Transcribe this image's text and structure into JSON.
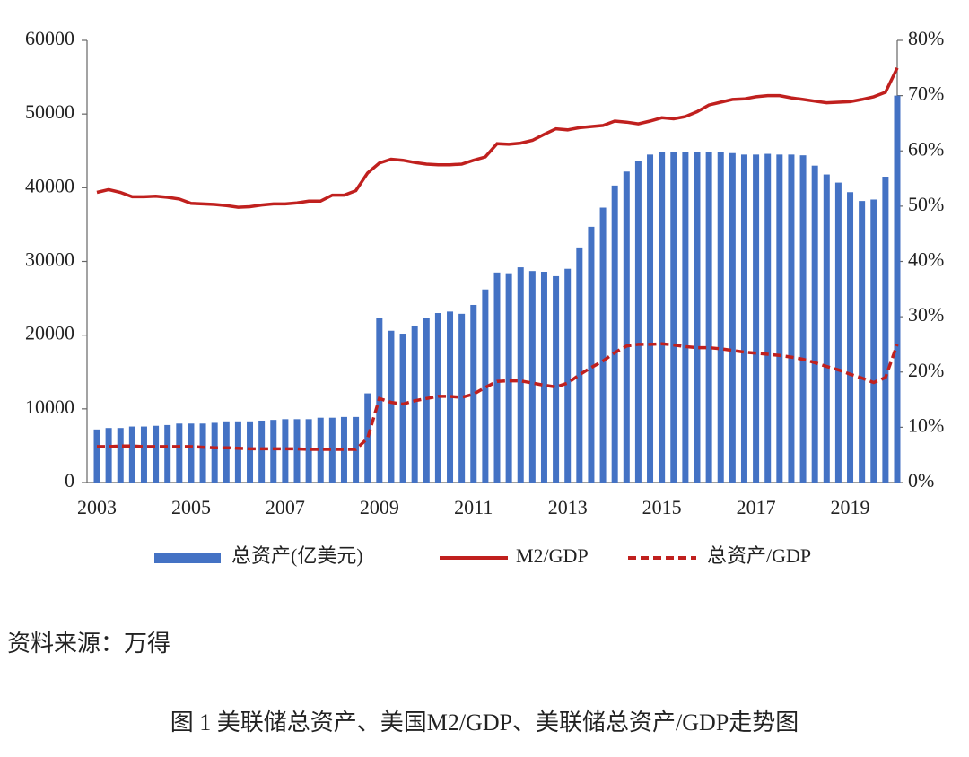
{
  "chart_data": {
    "type": "combo",
    "categories": [
      "2003",
      null,
      null,
      null,
      null,
      null,
      null,
      null,
      "2005",
      null,
      null,
      null,
      null,
      null,
      null,
      null,
      "2007",
      null,
      null,
      null,
      null,
      null,
      null,
      null,
      "2009",
      null,
      null,
      null,
      null,
      null,
      null,
      null,
      "2011",
      null,
      null,
      null,
      null,
      null,
      null,
      null,
      "2013",
      null,
      null,
      null,
      null,
      null,
      null,
      null,
      "2015",
      null,
      null,
      null,
      null,
      null,
      null,
      null,
      "2017",
      null,
      null,
      null,
      null,
      null,
      null,
      null,
      "2019",
      null,
      null,
      null,
      null
    ],
    "series": [
      {
        "name": "总资产(亿美元)",
        "kind": "bar",
        "axis": "y",
        "color": "#4472c4",
        "values": [
          7200,
          7400,
          7400,
          7600,
          7600,
          7700,
          7800,
          8000,
          8000,
          8000,
          8100,
          8300,
          8300,
          8300,
          8400,
          8500,
          8600,
          8600,
          8600,
          8800,
          8800,
          8900,
          8900,
          12100,
          22300,
          20600,
          20200,
          21300,
          22300,
          23000,
          23200,
          22900,
          24100,
          26200,
          28500,
          28400,
          29200,
          28700,
          28600,
          28000,
          29000,
          31900,
          34700,
          37300,
          40300,
          42200,
          43600,
          44500,
          44800,
          44800,
          44900,
          44800,
          44800,
          44800,
          44700,
          44500,
          44500,
          44600,
          44500,
          44500,
          44400,
          43000,
          41800,
          40700,
          39400,
          38200,
          38400,
          41500,
          52500
        ]
      },
      {
        "name": "M2/GDP",
        "kind": "line",
        "line_style": "solid",
        "axis": "y2",
        "color": "#c0201e",
        "values": [
          52.5,
          53,
          52.5,
          51.7,
          51.7,
          51.8,
          51.6,
          51.3,
          50.5,
          50.4,
          50.3,
          50.1,
          49.8,
          49.9,
          50.2,
          50.4,
          50.4,
          50.6,
          50.9,
          50.9,
          52,
          52,
          52.8,
          56,
          57.8,
          58.5,
          58.3,
          57.9,
          57.6,
          57.5,
          57.5,
          57.6,
          58.3,
          58.9,
          61.3,
          61.2,
          61.4,
          61.9,
          63,
          64,
          63.8,
          64.2,
          64.4,
          64.6,
          65.4,
          65.2,
          64.9,
          65.4,
          66,
          65.8,
          66.2,
          67.1,
          68.3,
          68.8,
          69.3,
          69.4,
          69.8,
          70,
          70,
          69.6,
          69.3,
          69,
          68.7,
          68.8,
          68.9,
          69.3,
          69.8,
          70.6,
          75
        ]
      },
      {
        "name": "总资产/GDP",
        "kind": "line",
        "line_style": "dashed",
        "axis": "y2",
        "color": "#c0201e",
        "values": [
          6.5,
          6.5,
          6.6,
          6.6,
          6.5,
          6.5,
          6.5,
          6.5,
          6.5,
          6.4,
          6.3,
          6.3,
          6.2,
          6.1,
          6.1,
          6.1,
          6.1,
          6.1,
          6,
          6,
          6,
          6,
          6,
          8,
          15.2,
          14.5,
          14.2,
          14.8,
          15.2,
          15.6,
          15.6,
          15.4,
          16,
          17.2,
          18.3,
          18.4,
          18.4,
          18,
          17.6,
          17.3,
          18,
          19.5,
          20.8,
          22,
          23.5,
          24.7,
          25,
          25,
          25.1,
          24.9,
          24.6,
          24.4,
          24.4,
          24.2,
          23.9,
          23.6,
          23.4,
          23.2,
          23,
          22.7,
          22.3,
          21.7,
          21,
          20.4,
          19.6,
          18.9,
          18.1,
          19,
          25
        ]
      }
    ],
    "ylim": [
      0,
      60000
    ],
    "yticks": [
      0,
      10000,
      20000,
      30000,
      40000,
      50000,
      60000
    ],
    "y2lim": [
      0,
      80
    ],
    "y2ticks": [
      {
        "value": 0,
        "label": "0%"
      },
      {
        "value": 10,
        "label": "10%"
      },
      {
        "value": 20,
        "label": "20%"
      },
      {
        "value": 30,
        "label": "30%"
      },
      {
        "value": 40,
        "label": "40%"
      },
      {
        "value": 50,
        "label": "50%"
      },
      {
        "value": 60,
        "label": "60%"
      },
      {
        "value": 70,
        "label": "70%"
      },
      {
        "value": 80,
        "label": "80%"
      }
    ],
    "legend": "bottom",
    "grid": false
  },
  "source": "资料来源：万得",
  "caption": "图 1  美联储总资产、美国M2/GDP、美联储总资产/GDP走势图"
}
